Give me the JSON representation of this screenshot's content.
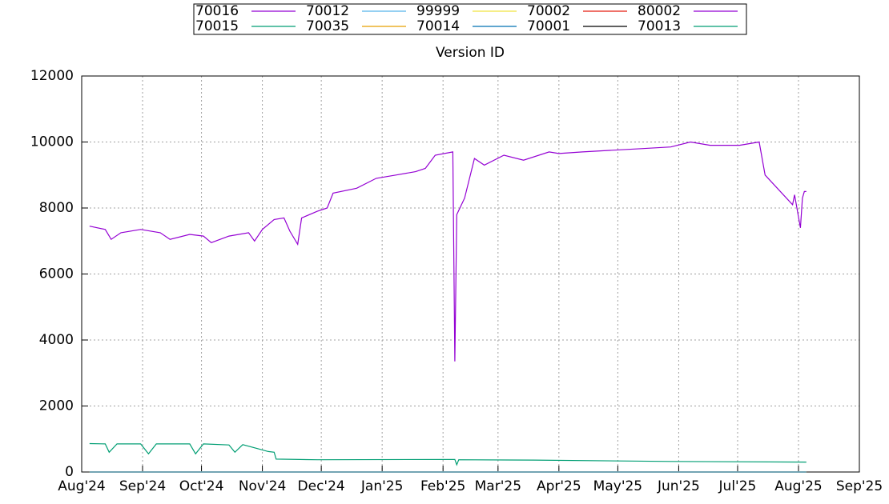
{
  "chart_data": {
    "type": "line",
    "title": "Version ID",
    "xlim": [
      0,
      396
    ],
    "ylim": [
      0,
      12000
    ],
    "xticks": [
      {
        "value": 0,
        "label": "Aug'24"
      },
      {
        "value": 31,
        "label": "Sep'24"
      },
      {
        "value": 61,
        "label": "Oct'24"
      },
      {
        "value": 92,
        "label": "Nov'24"
      },
      {
        "value": 122,
        "label": "Dec'24"
      },
      {
        "value": 153,
        "label": "Jan'25"
      },
      {
        "value": 184,
        "label": "Feb'25"
      },
      {
        "value": 212,
        "label": "Mar'25"
      },
      {
        "value": 243,
        "label": "Apr'25"
      },
      {
        "value": 273,
        "label": "May'25"
      },
      {
        "value": 304,
        "label": "Jun'25"
      },
      {
        "value": 334,
        "label": "Jul'25"
      },
      {
        "value": 365,
        "label": "Aug'25"
      },
      {
        "value": 396,
        "label": "Sep'25"
      }
    ],
    "yticks": [
      0,
      2000,
      4000,
      6000,
      8000,
      10000,
      12000
    ],
    "grid": true,
    "series": [
      {
        "name": "70016",
        "color": "#9400d3",
        "x": [
          4,
          12,
          15,
          20,
          30,
          40,
          45,
          55,
          62,
          66,
          75,
          85,
          88,
          92,
          98,
          103,
          106,
          110,
          112,
          120,
          125,
          128,
          140,
          150,
          160,
          170,
          175,
          180,
          189,
          190,
          191,
          195,
          200,
          205,
          215,
          225,
          238,
          243,
          255,
          270,
          285,
          300,
          310,
          320,
          335,
          345,
          348,
          362,
          363,
          366,
          367,
          368,
          369
        ],
        "values": [
          7450,
          7350,
          7050,
          7250,
          7350,
          7250,
          7050,
          7200,
          7150,
          6950,
          7150,
          7250,
          7000,
          7350,
          7650,
          7700,
          7300,
          6900,
          7700,
          7900,
          8000,
          8450,
          8600,
          8900,
          9000,
          9100,
          9200,
          9600,
          9700,
          3350,
          7800,
          8300,
          9500,
          9300,
          9600,
          9450,
          9700,
          9650,
          9700,
          9750,
          9800,
          9850,
          10000,
          9900,
          9900,
          10000,
          9000,
          8100,
          8400,
          7400,
          8300,
          8500,
          8500
        ]
      },
      {
        "name": "70015",
        "color": "#009e73",
        "x": [
          4,
          12,
          14,
          18,
          30,
          34,
          38,
          55,
          58,
          62,
          75,
          78,
          82,
          90,
          95,
          98,
          99,
          120,
          190,
          191,
          192,
          230,
          300,
          369
        ],
        "values": [
          860,
          850,
          600,
          850,
          850,
          550,
          850,
          850,
          550,
          850,
          820,
          600,
          830,
          700,
          620,
          600,
          390,
          370,
          380,
          220,
          370,
          360,
          320,
          300
        ]
      },
      {
        "name": "70012",
        "color": "#56b4e9",
        "x": [
          4,
          369
        ],
        "values": [
          0,
          0
        ]
      },
      {
        "name": "70035",
        "color": "#e69f00",
        "x": [
          4,
          369
        ],
        "values": [
          0,
          0
        ]
      },
      {
        "name": "99999",
        "color": "#f0e442",
        "x": [
          4,
          369
        ],
        "values": [
          0,
          0
        ]
      },
      {
        "name": "70014",
        "color": "#0072b2",
        "x": [
          4,
          369
        ],
        "values": [
          0,
          0
        ]
      },
      {
        "name": "70002",
        "color": "#e51e10",
        "x": [
          4,
          369
        ],
        "values": [
          0,
          0
        ]
      },
      {
        "name": "70001",
        "color": "#000000",
        "x": [
          4,
          369
        ],
        "values": [
          0,
          0
        ]
      },
      {
        "name": "80002",
        "color": "#9400d3",
        "x": [
          4,
          369
        ],
        "values": [
          0,
          0
        ]
      },
      {
        "name": "70013",
        "color": "#009e73",
        "x": [
          4,
          369
        ],
        "values": [
          0,
          0
        ]
      }
    ]
  }
}
